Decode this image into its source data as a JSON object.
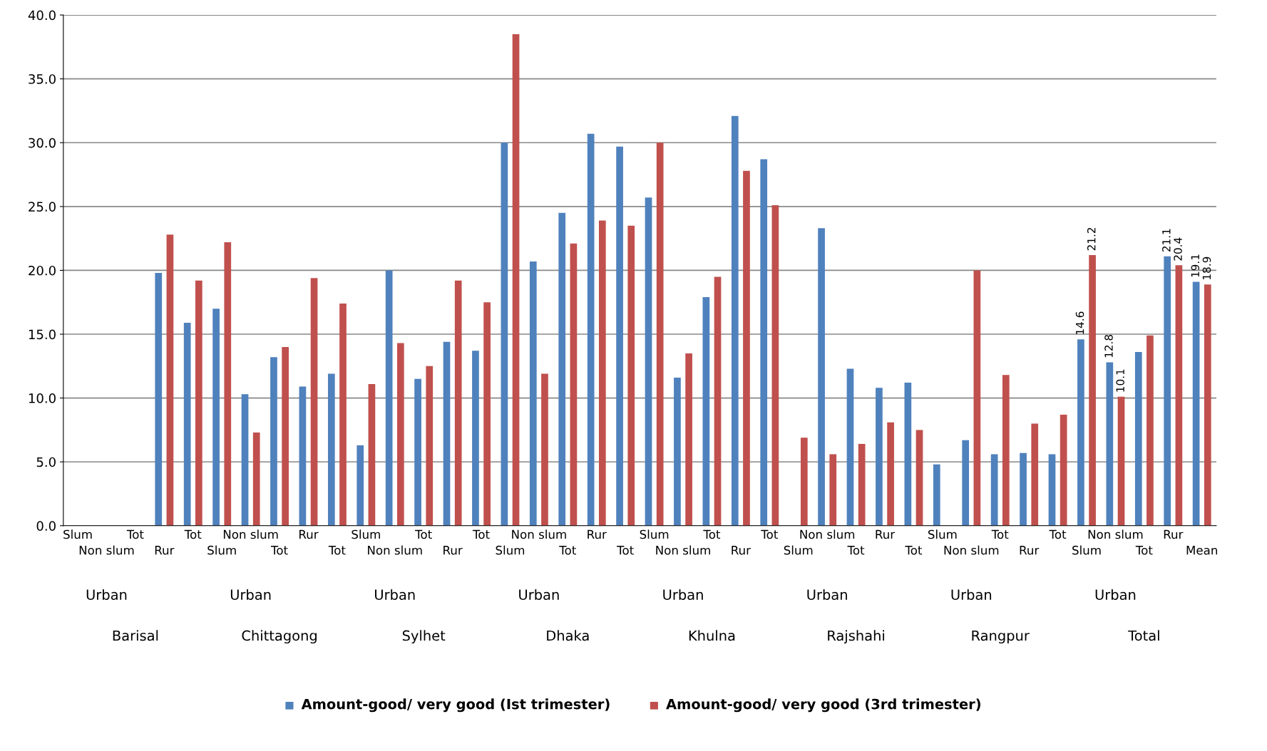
{
  "chart_data": {
    "type": "bar",
    "categories": [
      "Slum",
      "Non slum",
      "Tot",
      "Rur",
      "Tot",
      "Slum",
      "Non slum",
      "Tot",
      "Rur",
      "Tot",
      "Slum",
      "Non slum",
      "Tot",
      "Rur",
      "Tot",
      "Slum",
      "Non slum",
      "Tot",
      "Rur",
      "Tot",
      "Slum",
      "Non slum",
      "Tot",
      "Rur",
      "Tot",
      "Slum",
      "Non slum",
      "Tot",
      "Rur",
      "Tot",
      "Slum",
      "Non slum",
      "Tot",
      "Rur",
      "Tot",
      "Slum",
      "Non slum",
      "Tot",
      "Rur",
      "Mean"
    ],
    "series": [
      {
        "name": "Amount-good/ very good (Ist trimester)",
        "color": "#4f81bd",
        "values": [
          0,
          0,
          0,
          19.8,
          15.9,
          17.0,
          10.3,
          13.2,
          10.9,
          11.9,
          6.3,
          20.0,
          11.5,
          14.4,
          13.7,
          30.0,
          20.7,
          24.5,
          30.7,
          29.7,
          25.7,
          11.6,
          17.9,
          32.1,
          28.7,
          0,
          23.3,
          12.3,
          10.8,
          11.2,
          4.8,
          6.7,
          5.6,
          5.7,
          5.6,
          14.6,
          12.8,
          13.6,
          21.1,
          19.1
        ],
        "value_labels": [
          null,
          null,
          null,
          null,
          null,
          null,
          null,
          null,
          null,
          null,
          null,
          null,
          null,
          null,
          null,
          null,
          null,
          null,
          null,
          null,
          null,
          null,
          null,
          null,
          null,
          null,
          null,
          null,
          null,
          null,
          null,
          null,
          null,
          null,
          null,
          "14.6",
          "12.8",
          null,
          "21.1",
          "19.1"
        ]
      },
      {
        "name": "Amount-good/ very good (3rd trimester)",
        "color": "#c0504d",
        "values": [
          0,
          0,
          0,
          22.8,
          19.2,
          22.2,
          7.3,
          14.0,
          19.4,
          17.4,
          11.1,
          14.3,
          12.5,
          19.2,
          17.5,
          38.5,
          11.9,
          22.1,
          23.9,
          23.5,
          30.0,
          13.5,
          19.5,
          27.8,
          25.1,
          6.9,
          5.6,
          6.4,
          8.1,
          7.5,
          0,
          20.0,
          11.8,
          8.0,
          8.7,
          21.2,
          10.1,
          14.9,
          20.4,
          18.9
        ],
        "value_labels": [
          null,
          null,
          null,
          null,
          null,
          null,
          null,
          null,
          null,
          null,
          null,
          null,
          null,
          null,
          null,
          null,
          null,
          null,
          null,
          null,
          null,
          null,
          null,
          null,
          null,
          null,
          null,
          null,
          null,
          null,
          null,
          null,
          null,
          null,
          null,
          "21.2",
          "10.1",
          null,
          "20.4",
          "18.9"
        ]
      }
    ],
    "ylim": [
      0,
      40
    ],
    "yticks": [
      {
        "value": 0,
        "label": "0.0"
      },
      {
        "value": 5,
        "label": "5.0"
      },
      {
        "value": 10,
        "label": "10.0"
      },
      {
        "value": 15,
        "label": "15.0"
      },
      {
        "value": 20,
        "label": "20.0"
      },
      {
        "value": 25,
        "label": "25.0"
      },
      {
        "value": 30,
        "label": "30.0"
      },
      {
        "value": 35,
        "label": "35.0"
      },
      {
        "value": 40,
        "label": "40.0"
      }
    ],
    "grid": "y",
    "legend": "bottom",
    "annotations": [
      "Urban",
      "Barisal",
      "Urban",
      "Chittagong",
      "Urban",
      "Sylhet",
      "Urban",
      "Dhaka",
      "Urban",
      "Khulna",
      "Urban",
      "Rajshahi",
      "Urban",
      "Rangpur",
      "Urban",
      "Total"
    ]
  }
}
